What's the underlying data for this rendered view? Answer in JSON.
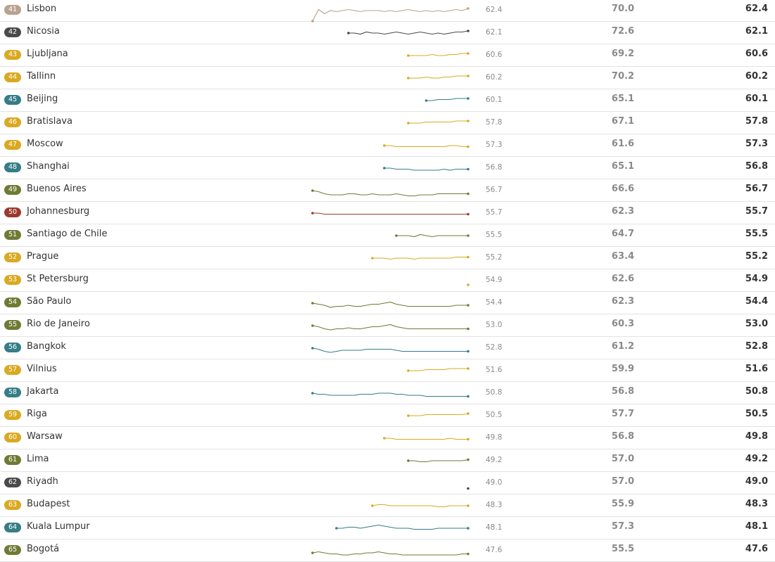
{
  "colors": {
    "western-europe": "#b8a28e",
    "dark": "#4a4a4a",
    "eastern-europe": "#d9a921",
    "asia": "#357d87",
    "latin-america": "#6f7b35",
    "africa": "#9b3a2e"
  },
  "chart_data": {
    "type": "table",
    "columns": [
      "rank",
      "city",
      "trend",
      "latest",
      "score_a",
      "score_b"
    ],
    "rows": [
      {
        "rank": "41",
        "city": "Lisbon",
        "group": "western-europe",
        "latest": "62.4",
        "score_a": "70.0",
        "score_b": "62.4",
        "trend": [
          0,
          0.55,
          0.35,
          0.5,
          0.45,
          0.5,
          0.55,
          0.5,
          0.45,
          0.5,
          0.5,
          0.5,
          0.45,
          0.5,
          0.45,
          0.5,
          0.55,
          0.5,
          0.45,
          0.5,
          0.45,
          0.5,
          0.45,
          0.5,
          0.55,
          0.5,
          0.6
        ]
      },
      {
        "rank": "42",
        "city": "Nicosia",
        "group": "dark",
        "latest": "62.1",
        "score_a": "72.6",
        "score_b": "62.1",
        "trend": [
          null,
          null,
          null,
          null,
          null,
          null,
          0.5,
          0.5,
          0.45,
          0.55,
          0.5,
          0.5,
          0.45,
          0.5,
          0.55,
          0.5,
          0.45,
          0.5,
          0.55,
          0.5,
          0.45,
          0.5,
          0.45,
          0.5,
          0.55,
          0.55,
          0.6
        ]
      },
      {
        "rank": "43",
        "city": "Ljubljana",
        "group": "eastern-europe",
        "latest": "60.6",
        "score_a": "69.2",
        "score_b": "60.6",
        "trend": [
          null,
          null,
          null,
          null,
          null,
          null,
          null,
          null,
          null,
          null,
          null,
          null,
          null,
          null,
          null,
          null,
          0.5,
          0.5,
          0.5,
          0.5,
          0.55,
          0.5,
          0.5,
          0.55,
          0.55,
          0.6,
          0.6
        ]
      },
      {
        "rank": "44",
        "city": "Tallinn",
        "group": "eastern-europe",
        "latest": "60.2",
        "score_a": "70.2",
        "score_b": "60.2",
        "trend": [
          null,
          null,
          null,
          null,
          null,
          null,
          null,
          null,
          null,
          null,
          null,
          null,
          null,
          null,
          null,
          null,
          0.5,
          0.5,
          0.5,
          0.55,
          0.5,
          0.5,
          0.55,
          0.55,
          0.6,
          0.6,
          0.6
        ]
      },
      {
        "rank": "45",
        "city": "Beijing",
        "group": "asia",
        "latest": "60.1",
        "score_a": "65.1",
        "score_b": "60.1",
        "trend": [
          null,
          null,
          null,
          null,
          null,
          null,
          null,
          null,
          null,
          null,
          null,
          null,
          null,
          null,
          null,
          null,
          null,
          null,
          null,
          0.5,
          0.5,
          0.55,
          0.55,
          0.55,
          0.6,
          0.6,
          0.6
        ]
      },
      {
        "rank": "46",
        "city": "Bratislava",
        "group": "eastern-europe",
        "latest": "57.8",
        "score_a": "67.1",
        "score_b": "57.8",
        "trend": [
          null,
          null,
          null,
          null,
          null,
          null,
          null,
          null,
          null,
          null,
          null,
          null,
          null,
          null,
          null,
          null,
          0.5,
          0.5,
          0.5,
          0.55,
          0.55,
          0.55,
          0.55,
          0.55,
          0.6,
          0.6,
          0.6
        ]
      },
      {
        "rank": "47",
        "city": "Moscow",
        "group": "eastern-europe",
        "latest": "57.3",
        "score_a": "61.6",
        "score_b": "57.3",
        "trend": [
          null,
          null,
          null,
          null,
          null,
          null,
          null,
          null,
          null,
          null,
          null,
          null,
          0.5,
          0.5,
          0.45,
          0.45,
          0.45,
          0.45,
          0.45,
          0.45,
          0.45,
          0.45,
          0.45,
          0.5,
          0.5,
          0.45,
          0.45
        ]
      },
      {
        "rank": "48",
        "city": "Shanghai",
        "group": "asia",
        "latest": "56.8",
        "score_a": "65.1",
        "score_b": "56.8",
        "trend": [
          null,
          null,
          null,
          null,
          null,
          null,
          null,
          null,
          null,
          null,
          null,
          null,
          0.5,
          0.5,
          0.45,
          0.45,
          0.45,
          0.4,
          0.4,
          0.4,
          0.4,
          0.4,
          0.45,
          0.4,
          0.45,
          0.45,
          0.45
        ]
      },
      {
        "rank": "49",
        "city": "Buenos Aires",
        "group": "latin-america",
        "latest": "56.7",
        "score_a": "66.6",
        "score_b": "56.7",
        "trend": [
          0.5,
          0.45,
          0.35,
          0.3,
          0.3,
          0.3,
          0.35,
          0.35,
          0.3,
          0.3,
          0.35,
          0.3,
          0.3,
          0.3,
          0.35,
          0.3,
          0.25,
          0.25,
          0.3,
          0.3,
          0.3,
          0.35,
          0.35,
          0.35,
          0.35,
          0.35,
          0.35
        ]
      },
      {
        "rank": "50",
        "city": "Johannesburg",
        "group": "africa",
        "latest": "55.7",
        "score_a": "62.3",
        "score_b": "55.7",
        "trend": [
          0.5,
          0.5,
          0.45,
          0.45,
          0.45,
          0.45,
          0.45,
          0.45,
          0.45,
          0.45,
          0.45,
          0.45,
          0.45,
          0.45,
          0.45,
          0.45,
          0.45,
          0.45,
          0.45,
          0.45,
          0.45,
          0.45,
          0.45,
          0.45,
          0.45,
          0.45,
          0.45
        ]
      },
      {
        "rank": "51",
        "city": "Santiago de Chile",
        "group": "latin-america",
        "latest": "55.5",
        "score_a": "64.7",
        "score_b": "55.5",
        "trend": [
          null,
          null,
          null,
          null,
          null,
          null,
          null,
          null,
          null,
          null,
          null,
          null,
          null,
          null,
          0.5,
          0.5,
          0.5,
          0.45,
          0.55,
          0.5,
          0.45,
          0.5,
          0.5,
          0.5,
          0.5,
          0.5,
          0.5
        ]
      },
      {
        "rank": "52",
        "city": "Prague",
        "group": "eastern-europe",
        "latest": "55.2",
        "score_a": "63.4",
        "score_b": "55.2",
        "trend": [
          null,
          null,
          null,
          null,
          null,
          null,
          null,
          null,
          null,
          null,
          0.5,
          0.5,
          0.5,
          0.45,
          0.5,
          0.5,
          0.5,
          0.45,
          0.5,
          0.5,
          0.5,
          0.5,
          0.5,
          0.5,
          0.55,
          0.55,
          0.55
        ]
      },
      {
        "rank": "53",
        "city": "St Petersburg",
        "group": "eastern-europe",
        "latest": "54.9",
        "score_a": "62.6",
        "score_b": "54.9",
        "trend": [
          null,
          null,
          null,
          null,
          null,
          null,
          null,
          null,
          null,
          null,
          null,
          null,
          null,
          null,
          null,
          null,
          null,
          null,
          null,
          null,
          null,
          null,
          null,
          null,
          null,
          null,
          0.3
        ]
      },
      {
        "rank": "54",
        "city": "São Paulo",
        "group": "latin-america",
        "latest": "54.4",
        "score_a": "62.3",
        "score_b": "54.4",
        "trend": [
          0.5,
          0.45,
          0.4,
          0.3,
          0.35,
          0.35,
          0.4,
          0.35,
          0.35,
          0.4,
          0.45,
          0.45,
          0.5,
          0.55,
          0.45,
          0.4,
          0.35,
          0.35,
          0.35,
          0.35,
          0.35,
          0.35,
          0.35,
          0.35,
          0.4,
          0.4,
          0.4
        ]
      },
      {
        "rank": "55",
        "city": "Rio de Janeiro",
        "group": "latin-america",
        "latest": "53.0",
        "score_a": "60.3",
        "score_b": "53.0",
        "trend": [
          0.5,
          0.45,
          0.35,
          0.3,
          0.35,
          0.35,
          0.4,
          0.35,
          0.35,
          0.4,
          0.45,
          0.45,
          0.5,
          0.55,
          0.45,
          0.4,
          0.35,
          0.35,
          0.35,
          0.35,
          0.35,
          0.35,
          0.35,
          0.35,
          0.35,
          0.35,
          0.35
        ]
      },
      {
        "rank": "56",
        "city": "Bangkok",
        "group": "asia",
        "latest": "52.8",
        "score_a": "61.2",
        "score_b": "52.8",
        "trend": [
          0.5,
          0.45,
          0.35,
          0.3,
          0.35,
          0.4,
          0.4,
          0.4,
          0.4,
          0.45,
          0.45,
          0.45,
          0.45,
          0.45,
          0.4,
          0.35,
          0.35,
          0.35,
          0.35,
          0.35,
          0.35,
          0.35,
          0.35,
          0.35,
          0.35,
          0.35,
          0.35
        ]
      },
      {
        "rank": "57",
        "city": "Vilnius",
        "group": "eastern-europe",
        "latest": "51.6",
        "score_a": "59.9",
        "score_b": "51.6",
        "trend": [
          null,
          null,
          null,
          null,
          null,
          null,
          null,
          null,
          null,
          null,
          null,
          null,
          null,
          null,
          null,
          null,
          0.5,
          0.5,
          0.5,
          0.55,
          0.55,
          0.55,
          0.55,
          0.6,
          0.6,
          0.6,
          0.6
        ]
      },
      {
        "rank": "58",
        "city": "Jakarta",
        "group": "asia",
        "latest": "50.8",
        "score_a": "56.8",
        "score_b": "50.8",
        "trend": [
          0.5,
          0.45,
          0.45,
          0.4,
          0.4,
          0.4,
          0.4,
          0.4,
          0.45,
          0.45,
          0.45,
          0.5,
          0.5,
          0.5,
          0.45,
          0.45,
          0.4,
          0.4,
          0.4,
          0.35,
          0.35,
          0.35,
          0.35,
          0.35,
          0.35,
          0.35,
          0.35
        ]
      },
      {
        "rank": "59",
        "city": "Riga",
        "group": "eastern-europe",
        "latest": "50.5",
        "score_a": "57.7",
        "score_b": "50.5",
        "trend": [
          null,
          null,
          null,
          null,
          null,
          null,
          null,
          null,
          null,
          null,
          null,
          null,
          null,
          null,
          null,
          null,
          0.5,
          0.5,
          0.5,
          0.55,
          0.55,
          0.55,
          0.55,
          0.55,
          0.55,
          0.55,
          0.6
        ]
      },
      {
        "rank": "60",
        "city": "Warsaw",
        "group": "eastern-europe",
        "latest": "49.8",
        "score_a": "56.8",
        "score_b": "49.8",
        "trend": [
          null,
          null,
          null,
          null,
          null,
          null,
          null,
          null,
          null,
          null,
          null,
          null,
          0.5,
          0.5,
          0.45,
          0.45,
          0.45,
          0.45,
          0.45,
          0.45,
          0.45,
          0.45,
          0.45,
          0.5,
          0.45,
          0.45,
          0.45
        ]
      },
      {
        "rank": "61",
        "city": "Lima",
        "group": "latin-america",
        "latest": "49.2",
        "score_a": "57.0",
        "score_b": "49.2",
        "trend": [
          null,
          null,
          null,
          null,
          null,
          null,
          null,
          null,
          null,
          null,
          null,
          null,
          null,
          null,
          null,
          null,
          0.5,
          0.5,
          0.45,
          0.45,
          0.5,
          0.5,
          0.5,
          0.5,
          0.5,
          0.5,
          0.55
        ]
      },
      {
        "rank": "62",
        "city": "Riyadh",
        "group": "dark",
        "latest": "49.0",
        "score_a": "57.0",
        "score_b": "49.0",
        "trend": [
          null,
          null,
          null,
          null,
          null,
          null,
          null,
          null,
          null,
          null,
          null,
          null,
          null,
          null,
          null,
          null,
          null,
          null,
          null,
          null,
          null,
          null,
          null,
          null,
          null,
          null,
          0.25
        ]
      },
      {
        "rank": "63",
        "city": "Budapest",
        "group": "eastern-europe",
        "latest": "48.3",
        "score_a": "55.9",
        "score_b": "48.3",
        "trend": [
          null,
          null,
          null,
          null,
          null,
          null,
          null,
          null,
          null,
          null,
          0.5,
          0.55,
          0.55,
          0.5,
          0.5,
          0.5,
          0.5,
          0.5,
          0.5,
          0.5,
          0.5,
          0.45,
          0.45,
          0.5,
          0.5,
          0.5,
          0.5
        ]
      },
      {
        "rank": "64",
        "city": "Kuala Lumpur",
        "group": "asia",
        "latest": "48.1",
        "score_a": "57.3",
        "score_b": "48.1",
        "trend": [
          null,
          null,
          null,
          null,
          0.5,
          0.5,
          0.55,
          0.55,
          0.5,
          0.55,
          0.6,
          0.65,
          0.6,
          0.55,
          0.5,
          0.5,
          0.5,
          0.45,
          0.45,
          0.45,
          0.45,
          0.5,
          0.5,
          0.5,
          0.5,
          0.5,
          0.5
        ]
      },
      {
        "rank": "65",
        "city": "Bogotá",
        "group": "latin-america",
        "latest": "47.6",
        "score_a": "55.5",
        "score_b": "47.6",
        "trend": [
          0.4,
          0.45,
          0.4,
          0.35,
          0.35,
          0.3,
          0.3,
          0.35,
          0.35,
          0.4,
          0.4,
          0.45,
          0.4,
          0.35,
          0.35,
          0.3,
          0.3,
          0.3,
          0.3,
          0.3,
          0.3,
          0.3,
          0.3,
          0.3,
          0.3,
          0.35,
          0.35
        ]
      }
    ]
  }
}
